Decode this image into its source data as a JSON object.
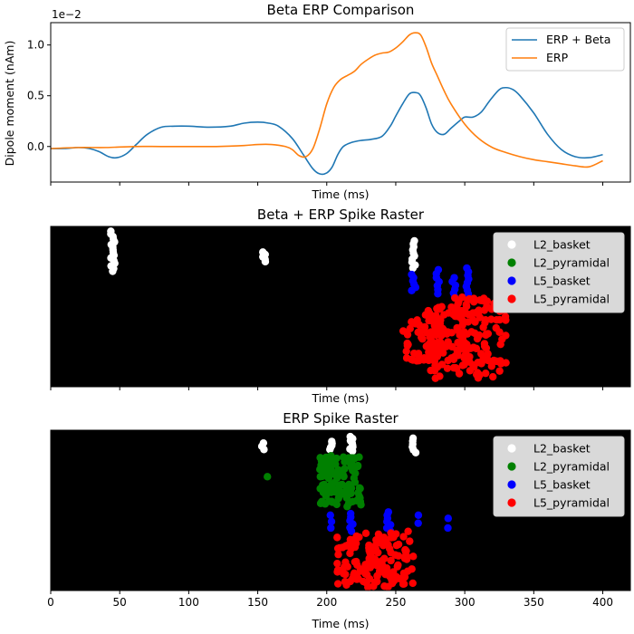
{
  "chart_data": [
    {
      "type": "line",
      "title": "Beta ERP Comparison",
      "xlabel": "Time (ms)",
      "ylabel": "Dipole moment (nAm)",
      "y_scale_label": "1e−2",
      "xlim": [
        0,
        420
      ],
      "ylim": [
        -0.35,
        1.22
      ],
      "y_ticks": [
        -0.5,
        0.0,
        0.5,
        1.0
      ],
      "y_tick_labels": [
        "0.0",
        "0.5",
        "1.0"
      ],
      "legend": "top-right",
      "series": [
        {
          "name": "ERP + Beta",
          "color": "#1f77b4",
          "x": [
            0,
            10,
            20,
            28,
            35,
            42,
            48,
            55,
            62,
            70,
            80,
            90,
            100,
            115,
            130,
            140,
            150,
            158,
            165,
            175,
            183,
            190,
            195,
            200,
            204,
            208,
            212,
            218,
            225,
            232,
            240,
            246,
            250,
            255,
            260,
            265,
            268,
            272,
            276,
            280,
            285,
            290,
            296,
            300,
            306,
            312,
            318,
            325,
            330,
            335,
            340,
            350,
            360,
            370,
            380,
            390,
            400
          ],
          "y": [
            -0.02,
            -0.02,
            -0.01,
            -0.02,
            -0.05,
            -0.1,
            -0.11,
            -0.07,
            0.02,
            0.12,
            0.19,
            0.2,
            0.2,
            0.19,
            0.2,
            0.23,
            0.24,
            0.23,
            0.2,
            0.08,
            -0.08,
            -0.22,
            -0.27,
            -0.26,
            -0.2,
            -0.08,
            -0.0,
            0.04,
            0.06,
            0.07,
            0.1,
            0.2,
            0.3,
            0.42,
            0.52,
            0.53,
            0.5,
            0.38,
            0.22,
            0.14,
            0.12,
            0.18,
            0.25,
            0.29,
            0.29,
            0.34,
            0.45,
            0.56,
            0.58,
            0.56,
            0.5,
            0.33,
            0.12,
            -0.03,
            -0.1,
            -0.11,
            -0.08
          ]
        },
        {
          "name": "ERP",
          "color": "#ff7f0e",
          "x": [
            0,
            20,
            40,
            60,
            80,
            100,
            120,
            140,
            150,
            160,
            170,
            175,
            180,
            185,
            190,
            195,
            200,
            205,
            210,
            215,
            220,
            225,
            230,
            235,
            240,
            245,
            250,
            255,
            260,
            264,
            268,
            272,
            276,
            280,
            285,
            290,
            300,
            310,
            320,
            330,
            340,
            350,
            360,
            370,
            380,
            390,
            400
          ],
          "y": [
            -0.02,
            -0.01,
            -0.01,
            0.0,
            0.0,
            0.0,
            0.0,
            0.01,
            0.02,
            0.02,
            0.0,
            -0.03,
            -0.09,
            -0.1,
            -0.02,
            0.18,
            0.42,
            0.58,
            0.66,
            0.7,
            0.74,
            0.81,
            0.86,
            0.9,
            0.92,
            0.93,
            0.97,
            1.03,
            1.1,
            1.12,
            1.1,
            0.98,
            0.82,
            0.7,
            0.55,
            0.42,
            0.22,
            0.08,
            -0.01,
            -0.06,
            -0.1,
            -0.13,
            -0.15,
            -0.17,
            -0.19,
            -0.2,
            -0.14
          ]
        }
      ]
    },
    {
      "type": "scatter",
      "title": "Beta + ERP Spike Raster",
      "xlabel": "Time (ms)",
      "xlim": [
        0,
        420
      ],
      "background": "#000000",
      "legend": "top-right",
      "series": [
        {
          "name": "L2_basket",
          "color": "#ffffff",
          "groups": [
            [
              45,
              0.03,
              0.28,
              16
            ],
            [
              154,
              0.16,
              0.22,
              5
            ],
            [
              263,
              0.09,
              0.26,
              10
            ]
          ]
        },
        {
          "name": "L2_pyramidal",
          "color": "#008000",
          "groups": []
        },
        {
          "name": "L5_basket",
          "color": "#0000ff",
          "groups": [
            [
              263,
              0.3,
              0.4,
              6
            ],
            [
              280,
              0.27,
              0.42,
              7
            ],
            [
              292,
              0.32,
              0.44,
              6
            ],
            [
              302,
              0.26,
              0.42,
              8
            ]
          ]
        },
        {
          "name": "L5_pyramidal",
          "color": "#ff0000",
          "groups": [
            [
              270,
              0.55,
              0.86,
              60
            ],
            [
              285,
              0.48,
              0.95,
              80
            ],
            [
              302,
              0.44,
              0.95,
              60
            ],
            [
              315,
              0.45,
              0.95,
              50
            ]
          ]
        }
      ]
    },
    {
      "type": "scatter",
      "title": "ERP Spike Raster",
      "xlabel": "Time (ms)",
      "xlim": [
        0,
        420
      ],
      "x_ticks": [
        0,
        50,
        100,
        150,
        200,
        250,
        300,
        350,
        400
      ],
      "background": "#000000",
      "legend": "top-right",
      "series": [
        {
          "name": "L2_basket",
          "color": "#ffffff",
          "groups": [
            [
              154,
              0.08,
              0.12,
              3
            ],
            [
              203,
              0.07,
              0.12,
              5
            ],
            [
              218,
              0.04,
              0.13,
              8
            ],
            [
              263,
              0.05,
              0.14,
              6
            ]
          ]
        },
        {
          "name": "L2_pyramidal",
          "color": "#008000",
          "groups": [
            [
              157,
              0.29,
              0.3,
              1
            ],
            [
              210,
              0.15,
              0.48,
              110
            ]
          ]
        },
        {
          "name": "L5_basket",
          "color": "#0000ff",
          "groups": [
            [
              203,
              0.53,
              0.61,
              3
            ],
            [
              218,
              0.52,
              0.63,
              6
            ],
            [
              245,
              0.51,
              0.63,
              7
            ],
            [
              265,
              0.53,
              0.58,
              2
            ],
            [
              289,
              0.55,
              0.61,
              2
            ]
          ]
        },
        {
          "name": "L5_pyramidal",
          "color": "#ff0000",
          "groups": [
            [
              222,
              0.64,
              0.98,
              70
            ],
            [
              248,
              0.62,
              0.98,
              70
            ]
          ]
        }
      ]
    }
  ]
}
